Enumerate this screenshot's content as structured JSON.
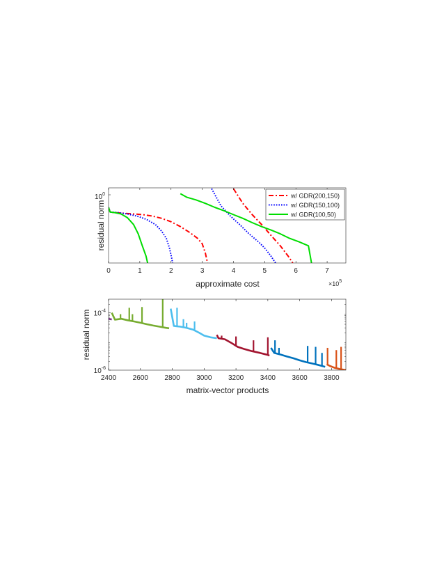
{
  "chart_data": [
    {
      "type": "line",
      "title": "",
      "xlabel": "approximate cost",
      "ylabel": "residual norm",
      "x_exponent_label": "×10",
      "x_exponent": "5",
      "xlim": [
        0,
        7.6
      ],
      "ylim": [
        0.07,
        1.05
      ],
      "yscale": "log",
      "grid": false,
      "legend_placement": "top-right",
      "x_ticks": [
        "0",
        "1",
        "2",
        "3",
        "4",
        "5",
        "6",
        "7"
      ],
      "x_tick_values": [
        0,
        1,
        2,
        3,
        4,
        5,
        6,
        7
      ],
      "y_tick_mantissa": "10",
      "y_tick_exponent": "0",
      "y_tick_value": 1.0,
      "series": [
        {
          "name": "w/ GDR(200,150)",
          "color": "#ff0000",
          "dash": "dashdot",
          "segments": [
            [
              [
                0,
                0.52
              ],
              [
                0.05,
                0.44
              ],
              [
                0.2,
                0.43
              ],
              [
                0.5,
                0.42
              ],
              [
                0.8,
                0.41
              ],
              [
                1.1,
                0.4
              ],
              [
                1.4,
                0.38
              ],
              [
                1.7,
                0.35
              ],
              [
                2.0,
                0.31
              ],
              [
                2.3,
                0.26
              ],
              [
                2.6,
                0.21
              ],
              [
                2.85,
                0.17
              ],
              [
                3.0,
                0.14
              ],
              [
                3.1,
                0.1
              ],
              [
                3.17,
                0.07
              ]
            ],
            [
              [
                4.0,
                1.02
              ],
              [
                4.3,
                0.6
              ],
              [
                4.6,
                0.4
              ],
              [
                4.9,
                0.28
              ],
              [
                5.2,
                0.19
              ],
              [
                5.5,
                0.13
              ],
              [
                5.75,
                0.09
              ],
              [
                5.9,
                0.07
              ]
            ]
          ]
        },
        {
          "name": "w/ GDR(150,100)",
          "color": "#0000ff",
          "dash": "dotted",
          "segments": [
            [
              [
                0,
                0.52
              ],
              [
                0.05,
                0.44
              ],
              [
                0.3,
                0.43
              ],
              [
                0.6,
                0.41
              ],
              [
                0.9,
                0.38
              ],
              [
                1.2,
                0.34
              ],
              [
                1.5,
                0.28
              ],
              [
                1.7,
                0.22
              ],
              [
                1.85,
                0.17
              ],
              [
                1.95,
                0.12
              ],
              [
                2.03,
                0.08
              ],
              [
                2.05,
                0.07
              ]
            ],
            [
              [
                3.3,
                1.02
              ],
              [
                3.6,
                0.55
              ],
              [
                3.9,
                0.38
              ],
              [
                4.2,
                0.28
              ],
              [
                4.5,
                0.2
              ],
              [
                4.8,
                0.15
              ],
              [
                5.0,
                0.12
              ],
              [
                5.2,
                0.09
              ],
              [
                5.35,
                0.07
              ]
            ]
          ]
        },
        {
          "name": "w/ GDR(100,50)",
          "color": "#00dd00",
          "dash": "solid",
          "segments": [
            [
              [
                0,
                0.52
              ],
              [
                0.05,
                0.44
              ],
              [
                0.2,
                0.43
              ],
              [
                0.4,
                0.41
              ],
              [
                0.6,
                0.36
              ],
              [
                0.8,
                0.28
              ],
              [
                0.95,
                0.2
              ],
              [
                1.08,
                0.13
              ],
              [
                1.2,
                0.09
              ],
              [
                1.25,
                0.07
              ]
            ],
            [
              [
                2.3,
                0.85
              ],
              [
                2.5,
                0.75
              ],
              [
                2.8,
                0.68
              ],
              [
                3.1,
                0.6
              ],
              [
                3.4,
                0.52
              ],
              [
                3.7,
                0.46
              ],
              [
                4.0,
                0.4
              ],
              [
                4.3,
                0.35
              ],
              [
                4.6,
                0.3
              ],
              [
                4.9,
                0.26
              ],
              [
                5.2,
                0.23
              ],
              [
                5.5,
                0.2
              ],
              [
                5.8,
                0.17
              ],
              [
                6.1,
                0.15
              ],
              [
                6.4,
                0.13
              ],
              [
                6.5,
                0.07
              ]
            ]
          ]
        }
      ]
    },
    {
      "type": "line",
      "title": "",
      "xlabel": "matrix-vector products",
      "ylabel": "residual norm",
      "xlim": [
        2400,
        3890
      ],
      "ylim": [
        1e-06,
        0.0003
      ],
      "yscale": "log",
      "grid": false,
      "legend_placement": "none",
      "x_ticks": [
        "2400",
        "2600",
        "2800",
        "3000",
        "3200",
        "3400",
        "3600",
        "3800"
      ],
      "x_tick_values": [
        2400,
        2600,
        2800,
        3000,
        3200,
        3400,
        3600,
        3800
      ],
      "y_ticks": [
        {
          "mantissa": "10",
          "exponent": "-4",
          "value": 0.0001
        },
        {
          "mantissa": "10",
          "exponent": "-6",
          "value": 1e-06
        }
      ],
      "series": [
        {
          "color": "#7e2f8e",
          "points": [
            [
              2400,
              6.2e-05
            ],
            [
              2420,
              5.9e-05
            ]
          ],
          "spikes": []
        },
        {
          "color": "#77ac30",
          "points": [
            [
              2420,
              0.0001
            ],
            [
              2440,
              5.8e-05
            ],
            [
              2480,
              6.2e-05
            ],
            [
              2520,
              5.5e-05
            ],
            [
              2560,
              5e-05
            ],
            [
              2600,
              4.5e-05
            ],
            [
              2640,
              4e-05
            ],
            [
              2680,
              3.6e-05
            ],
            [
              2720,
              3.3e-05
            ],
            [
              2760,
              3e-05
            ],
            [
              2780,
              2.9e-05
            ]
          ],
          "spikes": [
            [
              2475,
              9e-05
            ],
            [
              2530,
              0.00015
            ],
            [
              2550,
              9e-05
            ],
            [
              2610,
              0.00016
            ],
            [
              2740,
              0.0003
            ]
          ]
        },
        {
          "color": "#4dbeee",
          "points": [
            [
              2790,
              0.00014
            ],
            [
              2810,
              3.5e-05
            ],
            [
              2850,
              3.3e-05
            ],
            [
              2890,
              3e-05
            ],
            [
              2930,
              2.6e-05
            ],
            [
              2970,
              2e-05
            ],
            [
              3000,
              1.6e-05
            ],
            [
              3040,
              1.4e-05
            ],
            [
              3080,
              1.3e-05
            ]
          ],
          "spikes": [
            [
              2830,
              0.00015
            ],
            [
              2870,
              6e-05
            ],
            [
              2890,
              4.5e-05
            ],
            [
              2940,
              5e-05
            ]
          ]
        },
        {
          "color": "#a2142f",
          "points": [
            [
              3080,
              1.7e-05
            ],
            [
              3090,
              1.3e-05
            ],
            [
              3130,
              1.2e-05
            ],
            [
              3170,
              9e-06
            ],
            [
              3210,
              6.5e-06
            ],
            [
              3250,
              5.5e-06
            ],
            [
              3300,
              4.6e-06
            ],
            [
              3350,
              4e-06
            ],
            [
              3400,
              3.4e-06
            ],
            [
              3410,
              3.2e-06
            ]
          ],
          "spikes": [
            [
              3110,
              1.6e-05
            ],
            [
              3200,
              1.5e-05
            ],
            [
              3310,
              1.1e-05
            ],
            [
              3400,
              1.4e-05
            ]
          ]
        },
        {
          "color": "#0072bd",
          "points": [
            [
              3420,
              6e-06
            ],
            [
              3440,
              4e-06
            ],
            [
              3480,
              3.5e-06
            ],
            [
              3520,
              3e-06
            ],
            [
              3560,
              2.6e-06
            ],
            [
              3600,
              2.2e-06
            ],
            [
              3640,
              1.9e-06
            ],
            [
              3680,
              1.7e-06
            ],
            [
              3720,
              1.5e-06
            ],
            [
              3760,
              1.3e-06
            ]
          ],
          "spikes": [
            [
              3445,
              1.1e-05
            ],
            [
              3470,
              6e-06
            ],
            [
              3650,
              7e-06
            ],
            [
              3700,
              6.5e-06
            ],
            [
              3740,
              4e-06
            ]
          ]
        },
        {
          "color": "#d95319",
          "points": [
            [
              3770,
              1.6e-06
            ],
            [
              3790,
              1.4e-06
            ],
            [
              3820,
              1.2e-06
            ],
            [
              3850,
              1.1e-06
            ],
            [
              3890,
              1e-06
            ]
          ],
          "spikes": [
            [
              3775,
              6e-06
            ],
            [
              3830,
              5e-06
            ],
            [
              3860,
              6.5e-06
            ]
          ]
        }
      ]
    }
  ]
}
